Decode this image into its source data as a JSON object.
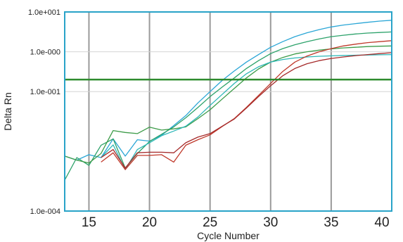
{
  "chart_data": {
    "type": "line",
    "xlabel": "Cycle Number",
    "ylabel": "Delta Rn",
    "x_range": [
      13,
      40
    ],
    "y_scale": "log",
    "y_range": [
      0.0001,
      10
    ],
    "x_ticks": [
      15,
      20,
      25,
      30,
      35,
      40
    ],
    "y_ticks": [
      {
        "value": 10,
        "label": "1.0e+001"
      },
      {
        "value": 1,
        "label": "1.0e-000"
      },
      {
        "value": 0.1,
        "label": "1.0e-001"
      },
      {
        "value": 0.0001,
        "label": "1.0e-004"
      }
    ],
    "y_gridlines": [
      1,
      0.1
    ],
    "threshold": 0.2,
    "threshold_color": "#2e8b2e",
    "frame_color": "#29a3c8",
    "grid_color": "#9a9a9a",
    "series": [
      {
        "color": "#2aa6d6",
        "points": [
          [
            13,
            0.0024
          ],
          [
            14,
            0.0019
          ],
          [
            15,
            0.0026
          ],
          [
            16,
            0.0022
          ],
          [
            17,
            0.0065
          ],
          [
            18,
            0.0024
          ],
          [
            19,
            0.0062
          ],
          [
            20,
            0.0057
          ],
          [
            21,
            0.008
          ],
          [
            22,
            0.014
          ],
          [
            23,
            0.025
          ],
          [
            24,
            0.052
          ],
          [
            25,
            0.1
          ],
          [
            26,
            0.19
          ],
          [
            27,
            0.33
          ],
          [
            28,
            0.55
          ],
          [
            29,
            0.85
          ],
          [
            30,
            1.3
          ],
          [
            31,
            1.8
          ],
          [
            32,
            2.4
          ],
          [
            33,
            3.0
          ],
          [
            34,
            3.6
          ],
          [
            35,
            4.2
          ],
          [
            36,
            4.7
          ],
          [
            37,
            5.1
          ],
          [
            38,
            5.5
          ],
          [
            39,
            5.9
          ],
          [
            40,
            6.2
          ]
        ]
      },
      {
        "color": "#2ca26a",
        "points": [
          [
            13,
            0.0006
          ],
          [
            14,
            0.0022
          ],
          [
            15,
            0.0014
          ],
          [
            16,
            0.0045
          ],
          [
            17,
            0.0065
          ],
          [
            18,
            0.0012
          ],
          [
            19,
            0.0028
          ],
          [
            20,
            0.0056
          ],
          [
            21,
            0.0085
          ],
          [
            22,
            0.013
          ],
          [
            23,
            0.022
          ],
          [
            24,
            0.04
          ],
          [
            25,
            0.075
          ],
          [
            26,
            0.13
          ],
          [
            27,
            0.22
          ],
          [
            28,
            0.38
          ],
          [
            29,
            0.6
          ],
          [
            30,
            0.9
          ],
          [
            31,
            1.2
          ],
          [
            32,
            1.5
          ],
          [
            33,
            1.8
          ],
          [
            34,
            2.1
          ],
          [
            35,
            2.4
          ],
          [
            36,
            2.6
          ],
          [
            37,
            2.8
          ],
          [
            38,
            2.95
          ],
          [
            39,
            3.05
          ],
          [
            40,
            3.15
          ]
        ]
      },
      {
        "color": "#3c9b48",
        "points": [
          [
            13,
            0.0024
          ],
          [
            14,
            0.0019
          ],
          [
            15,
            0.0016
          ],
          [
            16,
            0.0028
          ],
          [
            17,
            0.0105
          ],
          [
            18,
            0.0094
          ],
          [
            19,
            0.0088
          ],
          [
            20,
            0.0128
          ],
          [
            21,
            0.0108
          ],
          [
            22,
            0.0116
          ],
          [
            23,
            0.013
          ],
          [
            24,
            0.021
          ],
          [
            25,
            0.035
          ],
          [
            26,
            0.065
          ],
          [
            27,
            0.12
          ],
          [
            28,
            0.22
          ],
          [
            29,
            0.37
          ],
          [
            30,
            0.55
          ],
          [
            31,
            0.72
          ],
          [
            32,
            0.88
          ],
          [
            33,
            1.0
          ],
          [
            34,
            1.1
          ],
          [
            35,
            1.18
          ],
          [
            36,
            1.25
          ],
          [
            37,
            1.3
          ],
          [
            38,
            1.35
          ],
          [
            39,
            1.38
          ],
          [
            40,
            1.4
          ]
        ]
      },
      {
        "color": "#2db7b7",
        "points": [
          [
            16,
            0.0022
          ],
          [
            17,
            0.0046
          ],
          [
            18,
            0.0011
          ],
          [
            19,
            0.0035
          ],
          [
            20,
            0.0052
          ],
          [
            21,
            0.0078
          ],
          [
            22,
            0.0102
          ],
          [
            23,
            0.0135
          ],
          [
            24,
            0.023
          ],
          [
            25,
            0.045
          ],
          [
            26,
            0.085
          ],
          [
            27,
            0.16
          ],
          [
            28,
            0.28
          ],
          [
            29,
            0.42
          ],
          [
            30,
            0.55
          ],
          [
            31,
            0.64
          ],
          [
            32,
            0.7
          ],
          [
            33,
            0.74
          ],
          [
            34,
            0.77
          ],
          [
            35,
            0.79
          ],
          [
            36,
            0.81
          ],
          [
            37,
            0.82
          ],
          [
            38,
            0.83
          ],
          [
            39,
            0.84
          ],
          [
            40,
            0.85
          ]
        ]
      },
      {
        "color": "#c0392b",
        "points": [
          [
            16,
            0.0017
          ],
          [
            17,
            0.0029
          ],
          [
            18,
            0.0011
          ],
          [
            19,
            0.0025
          ],
          [
            20,
            0.0025
          ],
          [
            21,
            0.0026
          ],
          [
            22,
            0.0017
          ],
          [
            23,
            0.0045
          ],
          [
            24,
            0.0062
          ],
          [
            25,
            0.0082
          ],
          [
            26,
            0.0133
          ],
          [
            27,
            0.021
          ],
          [
            28,
            0.04
          ],
          [
            29,
            0.08
          ],
          [
            30,
            0.16
          ],
          [
            31,
            0.32
          ],
          [
            32,
            0.55
          ],
          [
            33,
            0.78
          ],
          [
            34,
            1.0
          ],
          [
            35,
            1.2
          ],
          [
            36,
            1.4
          ],
          [
            37,
            1.55
          ],
          [
            38,
            1.7
          ],
          [
            39,
            1.8
          ],
          [
            40,
            1.9
          ]
        ]
      },
      {
        "color": "#a52a2a",
        "points": [
          [
            16,
            0.0022
          ],
          [
            17,
            0.0035
          ],
          [
            18,
            0.0012
          ],
          [
            19,
            0.0029
          ],
          [
            20,
            0.003
          ],
          [
            21,
            0.003
          ],
          [
            22,
            0.0029
          ],
          [
            23,
            0.0052
          ],
          [
            24,
            0.0072
          ],
          [
            25,
            0.0088
          ],
          [
            26,
            0.0135
          ],
          [
            27,
            0.0205
          ],
          [
            28,
            0.0385
          ],
          [
            29,
            0.075
          ],
          [
            30,
            0.14
          ],
          [
            31,
            0.25
          ],
          [
            32,
            0.38
          ],
          [
            33,
            0.5
          ],
          [
            34,
            0.6
          ],
          [
            35,
            0.68
          ],
          [
            36,
            0.74
          ],
          [
            37,
            0.8
          ],
          [
            38,
            0.85
          ],
          [
            39,
            0.9
          ],
          [
            40,
            0.95
          ]
        ]
      }
    ]
  }
}
